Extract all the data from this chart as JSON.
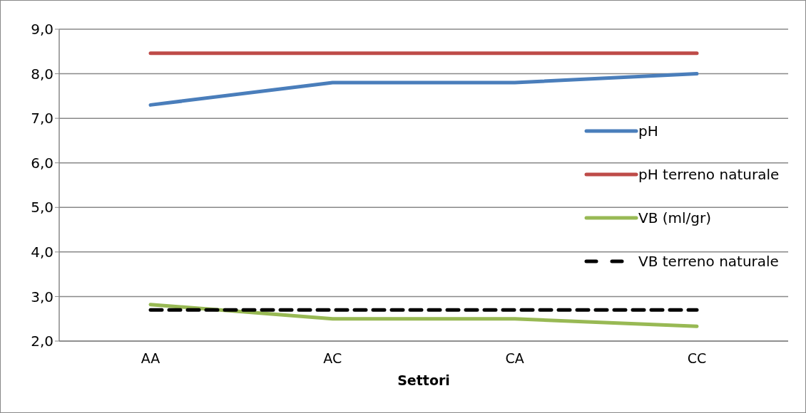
{
  "chart_data": {
    "type": "line",
    "xlabel": "Settori",
    "categories": [
      "AA",
      "AC",
      "CA",
      "CC"
    ],
    "series": [
      {
        "name": "pH",
        "color": "#4a7ebb",
        "values": [
          7.3,
          7.8,
          7.8,
          8.0
        ]
      },
      {
        "name": "pH terreno naturale",
        "color": "#be4b48",
        "values": [
          8.46,
          8.46,
          8.46,
          8.46
        ]
      },
      {
        "name": "VB (ml/gr)",
        "color": "#98b954",
        "values": [
          2.82,
          2.5,
          2.5,
          2.33
        ]
      },
      {
        "name": "VB terreno naturale",
        "color": "#000000",
        "values": [
          2.7,
          2.7,
          2.7,
          2.7
        ],
        "line_style": "dashed"
      }
    ],
    "ylim": [
      2,
      9
    ],
    "yticks": [
      {
        "value": 2,
        "label": "2,0"
      },
      {
        "value": 3,
        "label": "3,0"
      },
      {
        "value": 4,
        "label": "4,0"
      },
      {
        "value": 5,
        "label": "5,0"
      },
      {
        "value": 6,
        "label": "6,0"
      },
      {
        "value": 7,
        "label": "7,0"
      },
      {
        "value": 8,
        "label": "8,0"
      },
      {
        "value": 9,
        "label": "9,0"
      }
    ],
    "grid": "y",
    "legend": "right",
    "marker": "none",
    "line_style": "solid"
  }
}
